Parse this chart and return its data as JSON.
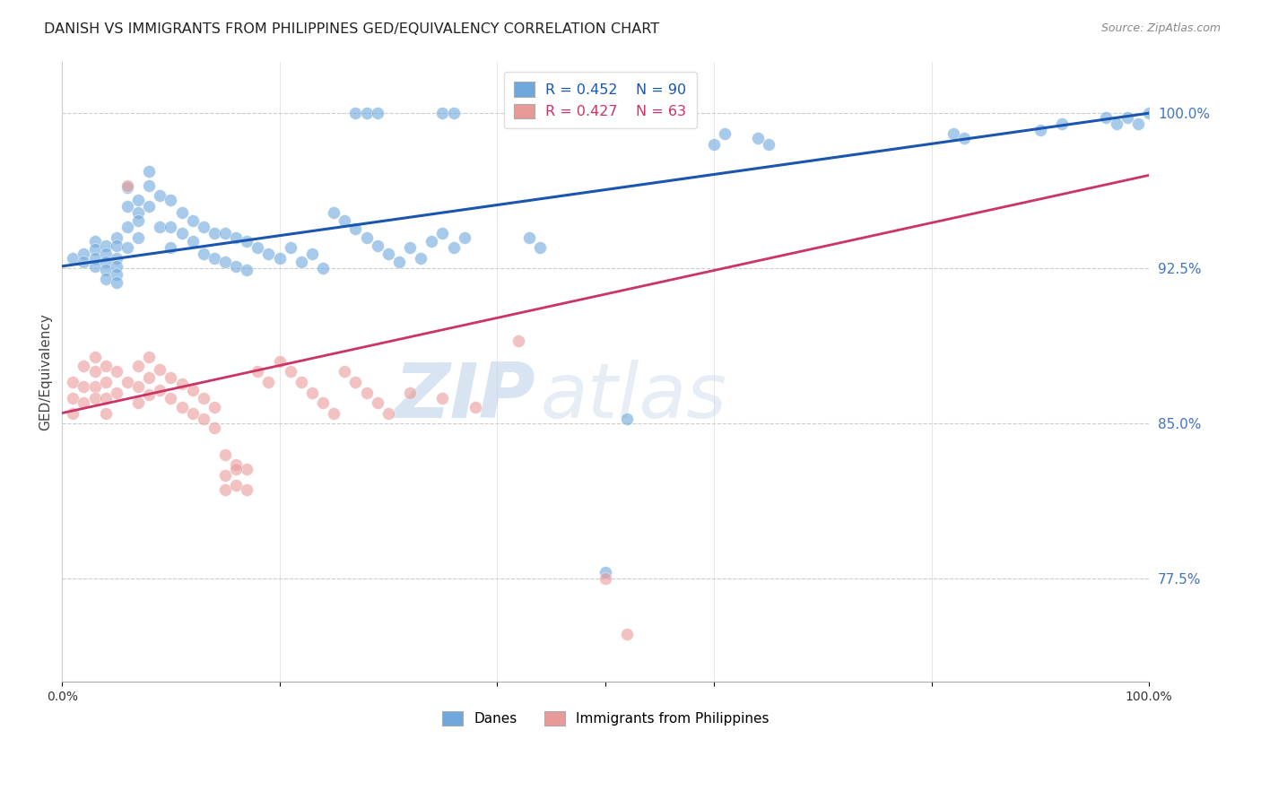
{
  "title": "DANISH VS IMMIGRANTS FROM PHILIPPINES GED/EQUIVALENCY CORRELATION CHART",
  "source": "Source: ZipAtlas.com",
  "ylabel": "GED/Equivalency",
  "ytick_labels": [
    "100.0%",
    "92.5%",
    "85.0%",
    "77.5%"
  ],
  "ytick_values": [
    1.0,
    0.925,
    0.85,
    0.775
  ],
  "xlim": [
    0.0,
    1.0
  ],
  "ylim": [
    0.725,
    1.025
  ],
  "legend_label_blue": "Danes",
  "legend_label_pink": "Immigrants from Philippines",
  "blue_color": "#6fa8dc",
  "pink_color": "#ea9999",
  "trendline_blue_color": "#1a56b0",
  "trendline_pink_color": "#cc3366",
  "watermark_zip": "ZIP",
  "watermark_atlas": "atlas",
  "background_color": "#ffffff",
  "blue_trendline_x": [
    0.0,
    1.0
  ],
  "blue_trendline_y": [
    0.926,
    1.0
  ],
  "pink_trendline_x": [
    0.0,
    1.0
  ],
  "pink_trendline_y": [
    0.855,
    0.97
  ],
  "blue_x": [
    0.01,
    0.02,
    0.02,
    0.03,
    0.03,
    0.03,
    0.03,
    0.04,
    0.04,
    0.04,
    0.04,
    0.04,
    0.05,
    0.05,
    0.05,
    0.05,
    0.05,
    0.05,
    0.06,
    0.06,
    0.06,
    0.06,
    0.07,
    0.07,
    0.07,
    0.07,
    0.08,
    0.08,
    0.08,
    0.09,
    0.09,
    0.1,
    0.1,
    0.1,
    0.11,
    0.11,
    0.12,
    0.12,
    0.13,
    0.13,
    0.14,
    0.14,
    0.15,
    0.15,
    0.16,
    0.16,
    0.17,
    0.17,
    0.18,
    0.19,
    0.2,
    0.21,
    0.22,
    0.23,
    0.24,
    0.25,
    0.26,
    0.27,
    0.28,
    0.29,
    0.3,
    0.31,
    0.32,
    0.33,
    0.34,
    0.35,
    0.36,
    0.37,
    0.27,
    0.28,
    0.29,
    0.35,
    0.36,
    0.43,
    0.44,
    0.6,
    0.61,
    0.64,
    0.65,
    0.82,
    0.83,
    0.9,
    0.92,
    0.96,
    0.97,
    0.98,
    0.99,
    1.0,
    0.5,
    0.52
  ],
  "blue_y": [
    0.93,
    0.932,
    0.928,
    0.938,
    0.934,
    0.93,
    0.926,
    0.936,
    0.932,
    0.928,
    0.924,
    0.92,
    0.94,
    0.936,
    0.93,
    0.926,
    0.922,
    0.918,
    0.964,
    0.955,
    0.945,
    0.935,
    0.958,
    0.952,
    0.948,
    0.94,
    0.972,
    0.965,
    0.955,
    0.96,
    0.945,
    0.958,
    0.945,
    0.935,
    0.952,
    0.942,
    0.948,
    0.938,
    0.945,
    0.932,
    0.942,
    0.93,
    0.942,
    0.928,
    0.94,
    0.926,
    0.938,
    0.924,
    0.935,
    0.932,
    0.93,
    0.935,
    0.928,
    0.932,
    0.925,
    0.952,
    0.948,
    0.944,
    0.94,
    0.936,
    0.932,
    0.928,
    0.935,
    0.93,
    0.938,
    0.942,
    0.935,
    0.94,
    1.0,
    1.0,
    1.0,
    1.0,
    1.0,
    0.94,
    0.935,
    0.985,
    0.99,
    0.988,
    0.985,
    0.99,
    0.988,
    0.992,
    0.995,
    0.998,
    0.995,
    0.998,
    0.995,
    1.0,
    0.778,
    0.852
  ],
  "pink_x": [
    0.01,
    0.01,
    0.01,
    0.02,
    0.02,
    0.02,
    0.03,
    0.03,
    0.03,
    0.03,
    0.04,
    0.04,
    0.04,
    0.04,
    0.05,
    0.05,
    0.06,
    0.06,
    0.07,
    0.07,
    0.07,
    0.08,
    0.08,
    0.08,
    0.09,
    0.09,
    0.1,
    0.1,
    0.11,
    0.11,
    0.12,
    0.12,
    0.13,
    0.13,
    0.14,
    0.14,
    0.15,
    0.15,
    0.16,
    0.16,
    0.17,
    0.17,
    0.18,
    0.19,
    0.2,
    0.21,
    0.22,
    0.23,
    0.24,
    0.25,
    0.26,
    0.27,
    0.28,
    0.29,
    0.3,
    0.32,
    0.35,
    0.38,
    0.15,
    0.16,
    0.42,
    0.5,
    0.52
  ],
  "pink_y": [
    0.87,
    0.862,
    0.855,
    0.878,
    0.868,
    0.86,
    0.882,
    0.875,
    0.868,
    0.862,
    0.878,
    0.87,
    0.862,
    0.855,
    0.875,
    0.865,
    0.965,
    0.87,
    0.878,
    0.868,
    0.86,
    0.882,
    0.872,
    0.864,
    0.876,
    0.866,
    0.872,
    0.862,
    0.869,
    0.858,
    0.866,
    0.855,
    0.862,
    0.852,
    0.858,
    0.848,
    0.825,
    0.818,
    0.83,
    0.82,
    0.828,
    0.818,
    0.875,
    0.87,
    0.88,
    0.875,
    0.87,
    0.865,
    0.86,
    0.855,
    0.875,
    0.87,
    0.865,
    0.86,
    0.855,
    0.865,
    0.862,
    0.858,
    0.835,
    0.828,
    0.89,
    0.775,
    0.748
  ]
}
